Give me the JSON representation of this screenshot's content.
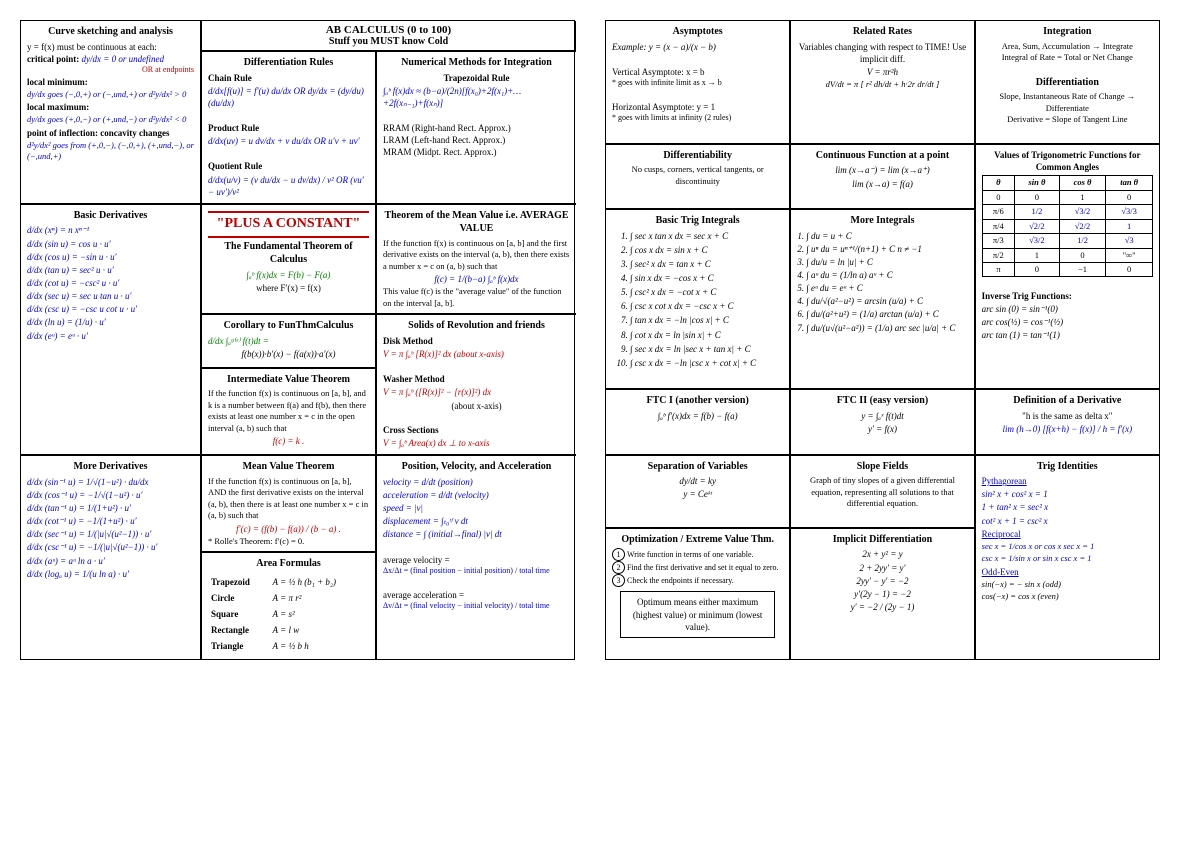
{
  "header": {
    "title": "AB CALCULUS (0 to 100)",
    "subtitle": "Stuff you MUST know Cold"
  },
  "left": {
    "curve": {
      "title": "Curve sketching and analysis",
      "l1": "y = f(x) must be continuous at each:",
      "crit": "critical point:",
      "crit_f": "dy/dx = 0 or undefined",
      "crit_or": "OR at endpoints",
      "lmin": "local minimum:",
      "lmin_f": "dy/dx goes (−,0,+) or (−,und,+) or d²y/dx² > 0",
      "lmax": "local maximum:",
      "lmax_f": "dy/dx goes (+,0,−) or (+,und,−) or d²y/dx² < 0",
      "poi": "point of inflection: concavity changes",
      "poi_f": "d²y/dx² goes from (+,0,−), (−,0,+), (+,und,−), or (−,und,+)"
    },
    "diff": {
      "title": "Differentiation Rules",
      "chain": "Chain Rule",
      "chain_f": "d/dx[f(u)] = f′(u) du/dx   OR   dy/dx = (dy/du)(du/dx)",
      "prod": "Product Rule",
      "prod_f": "d/dx(uv) = u dv/dx + v du/dx   OR   u′v + uv′",
      "quot": "Quotient Rule",
      "quot_f": "d/dx(u/v) = (v du/dx − u dv/dx) / v²   OR   (vu′ − uv′)/v²"
    },
    "num": {
      "title": "Numerical Methods for Integration",
      "trap": "Trapezoidal Rule",
      "trap_f": "∫ₐᵇ f(x)dx ≈ (b−a)/(2n)[f(x₀)+2f(x₁)+… +2f(xₙ₋₁)+f(xₙ)]",
      "rram": "RRAM  (Right-hand Rect. Approx.)",
      "lram": "LRAM  (Left-hand Rect. Approx.)",
      "mram": "MRAM  (Midpt. Rect. Approx.)"
    },
    "basic": {
      "title": "Basic Derivatives",
      "d1": "d/dx (xⁿ) = n xⁿ⁻¹",
      "d2": "d/dx (sin u) = cos u · u′",
      "d3": "d/dx (cos u) = −sin u · u′",
      "d4": "d/dx (tan u) = sec² u · u′",
      "d5": "d/dx (cot u) = −csc² u · u′",
      "d6": "d/dx (sec u) = sec u tan u · u′",
      "d7": "d/dx (csc u) = −csc u cot u · u′",
      "d8": "d/dx (ln u) = (1/u) · u′",
      "d9": "d/dx (eᵘ) = eᵘ · u′"
    },
    "constant": "\"PLUS A CONSTANT\"",
    "ftc": {
      "title": "The Fundamental Theorem of Calculus",
      "f1": "∫ₐᵇ f(x)dx = F(b) − F(a)",
      "f2": "where F′(x) = f(x)"
    },
    "cor": {
      "title": "Corollary to FunThmCalculus",
      "f1": "d/dx ∫ₐᵍ⁽ˣ⁾ f(t)dt =",
      "f2": "f(b(x))·b′(x) − f(a(x))·a′(x)"
    },
    "ivt": {
      "title": "Intermediate Value Theorem",
      "body": "If the function f(x) is continuous on [a, b], and k is a number between f(a) and f(b), then there exists at least one number x = c in the open interval (a, b) such that",
      "f": "f(c) = k ."
    },
    "mean": {
      "title": "Theorem of the Mean Value i.e. AVERAGE VALUE",
      "body": "If the function f(x) is continuous on [a, b] and the first derivative exists on the interval (a, b), then there exists a number x = c on (a, b) such that",
      "f": "f(c) = 1/(b−a) ∫ₐᵇ f(x)dx",
      "note": "This value f(c) is the \"average value\" of the function on the interval [a, b]."
    },
    "solids": {
      "title": "Solids of Revolution and friends",
      "disk": "Disk Method",
      "disk_f": "V = π ∫ₐᵇ [R(x)]² dx     (about x-axis)",
      "wash": "Washer Method",
      "wash_f": "V = π ∫ₐᵇ ([R(x)]² − [r(x)]²) dx",
      "wash_n": "(about x-axis)",
      "cross": "Cross Sections",
      "cross_f": "V = ∫ₐᵇ Area(x) dx      ⊥ to x-axis"
    },
    "more": {
      "title": "More Derivatives",
      "d1": "d/dx (sin⁻¹ u) = 1/√(1−u²) · du/dx",
      "d2": "d/dx (cos⁻¹ u) = −1/√(1−u²) · u′",
      "d3": "d/dx (tan⁻¹ u) = 1/(1+u²) · u′",
      "d4": "d/dx (cot⁻¹ u) = −1/(1+u²) · u′",
      "d5": "d/dx (sec⁻¹ u) = 1/(|u|√(u²−1)) · u′",
      "d6": "d/dx (csc⁻¹ u) = −1/(|u|√(u²−1)) · u′",
      "d7": "d/dx (aᵘ) = aᵘ ln a · u′",
      "d8": "d/dx (logₐ u) = 1/(u ln a) · u′"
    },
    "mvt": {
      "title": "Mean Value Theorem",
      "body": "If the function f(x) is continuous on [a, b], AND the first derivative exists on the interval (a, b), then there is at least one number x = c in (a, b) such that",
      "f": "f′(c) = (f(b) − f(a)) / (b − a) .",
      "rolle": "* Rolle's Theorem: f′(c) = 0."
    },
    "area": {
      "title": "Area Formulas",
      "trap": "Trapezoid",
      "trap_f": "A = ½ h (b₁ + b₂)",
      "circ": "Circle",
      "circ_f": "A = π r²",
      "sq": "Square",
      "sq_f": "A = s²",
      "rect": "Rectangle",
      "rect_f": "A = l w",
      "tri": "Triangle",
      "tri_f": "A = ½ b h"
    },
    "pva": {
      "title": "Position, Velocity, and Acceleration",
      "v": "velocity = d/dt (position)",
      "a": "acceleration = d/dt (velocity)",
      "s": "speed = |v|",
      "disp": "displacement = ∫ₜ₀ᵗᶠ v dt",
      "dist": "distance = ∫ (initial→final) |v| dt",
      "avgv_l": "average velocity =",
      "avgv": "Δx/Δt = (final position − initial position) / total time",
      "avga_l": "average acceleration =",
      "avga": "Δv/Δt = (final velocity − initial velocity) / total time"
    }
  },
  "right": {
    "asym": {
      "title": "Asymptotes",
      "ex": "Example:   y = (x − a)/(x − b)",
      "va": "Vertical Asymptote:  x = b",
      "va_n": "* goes with infinite limit as x → b",
      "ha": "Horizontal Asymptote:  y = 1",
      "ha_n": "* goes with limits at infinity (2 rules)"
    },
    "related": {
      "title": "Related Rates",
      "body": "Variables changing with respect to TIME!  Use implicit diff.",
      "f1": "V = πr²h",
      "f2": "dV/dt = π [ r² dh/dt + h·2r dr/dt ]"
    },
    "integ": {
      "title": "Integration",
      "l1": "Area, Sum, Accumulation → Integrate",
      "l2": "Integral of Rate = Total or Net Change",
      "dtitle": "Differentiation",
      "l3": "Slope, Instantaneous Rate of Change → Differentiate",
      "l4": "Derivative = Slope of Tangent Line"
    },
    "differ": {
      "title": "Differentiability",
      "body": "No cusps, corners, vertical tangents, or discontinuity"
    },
    "cont": {
      "title": "Continuous Function at a point",
      "f1": "lim (x→a⁻) = lim (x→a⁺)",
      "f2": "lim (x→a) = f(a)"
    },
    "trigvals": {
      "title": "Values of Trigonometric Functions for Common Angles",
      "headers": [
        "θ",
        "sin θ",
        "cos θ",
        "tan θ"
      ],
      "rows": [
        [
          "0",
          "0",
          "1",
          "0"
        ],
        [
          "π/6",
          "1/2",
          "√3/2",
          "√3/3"
        ],
        [
          "π/4",
          "√2/2",
          "√2/2",
          "1"
        ],
        [
          "π/3",
          "√3/2",
          "1/2",
          "√3"
        ],
        [
          "π/2",
          "1",
          "0",
          "\"∞\""
        ],
        [
          "π",
          "0",
          "−1",
          "0"
        ]
      ]
    },
    "inverse": {
      "title": "Inverse Trig Functions:",
      "l1": "arc sin (0) = sin⁻¹(0)",
      "l2": "arc cos(½) = cos⁻¹(½)",
      "l3": "arc tan (1) = tan⁻¹(1)"
    },
    "basictrig": {
      "title": "Basic Trig Integrals",
      "i1": "∫ sec x tan x dx = sec x + C",
      "i2": "∫ cos x dx = sin x + C",
      "i3": "∫ sec² x dx = tan x + C",
      "i4": "∫ sin x dx = −cos x + C",
      "i5": "∫ csc² x dx = −cot x + C",
      "i6": "∫ csc x cot x dx = −csc x + C",
      "i7": "∫ tan x dx = −ln |cos x| + C",
      "i8": "∫ cot x dx = ln |sin x| + C",
      "i9": "∫ sec x dx = ln |sec x + tan x| + C",
      "i10": "∫ csc x dx = −ln |csc x + cot x| + C"
    },
    "moreint": {
      "title": "More Integrals",
      "i1": "1. ∫ du = u + C",
      "i2": "2. ∫ uⁿ du = uⁿ⁺¹/(n+1) + C   n ≠ −1",
      "i3": "3. ∫ du/u = ln |u| + C",
      "i4": "4. ∫ aᵘ du = (1/ln a) aᵘ + C",
      "i5": "5. ∫ eᵘ du = eᵘ + C",
      "i6": "4. ∫ du/√(a²−u²) = arcsin (u/a) + C",
      "i7": "6. ∫ du/(a²+u²) = (1/a) arctan (u/a) + C",
      "i8": "7. ∫ du/(u√(u²−a²)) = (1/a) arc sec |u/a| + C"
    },
    "ftc1": {
      "title": "FTC I  (another version)",
      "f": "∫ₐᵇ f′(x)dx = f(b) − f(a)"
    },
    "ftc2": {
      "title": "FTC II  (easy version)",
      "f1": "y = ∫ₐˣ f(t)dt",
      "f2": "y′ = f(x)"
    },
    "defderiv": {
      "title": "Definition of a Derivative",
      "sub": "\"h is the same as delta x\"",
      "f": "lim (h→0) [f(x+h) − f(x)] / h = f′(x)"
    },
    "sep": {
      "title": "Separation of Variables",
      "f1": "dy/dt = ky",
      "f2": "y = Ceᵏᵗ"
    },
    "slope": {
      "title": "Slope Fields",
      "body": "Graph of tiny slopes of a given differential equation, representing all solutions to that differential equation."
    },
    "ident": {
      "title": "Trig Identities",
      "pyth": "Pythagorean",
      "p1": "sin² x + cos² x = 1",
      "p2": "1 + tan² x = sec² x",
      "p3": "cot² x + 1 = csc² x",
      "recip": "Reciprocal",
      "r1": "sec x = 1/cos x   or   cos x sec x = 1",
      "r2": "csc x = 1/sin x   or   sin x csc x = 1",
      "odd": "Odd-Even",
      "o1": "sin(−x) = − sin x     (odd)",
      "o2": "cos(−x) = cos x       (even)"
    },
    "opt": {
      "title": "Optimization / Extreme Value Thm.",
      "s1": "Write function in terms of one variable.",
      "s2": "Find the first derivative and set it equal to zero.",
      "s3": "Check the endpoints if necessary.",
      "box": "Optimum means either maximum (highest value) or minimum (lowest value)."
    },
    "impl": {
      "title": "Implicit Differentiation",
      "l1": "2x + y² = y",
      "l2": "2 + 2yy′ = y′",
      "l3": "2yy′ − y′ = −2",
      "l4": "y′(2y − 1) = −2",
      "l5": "y′ = −2 / (2y − 1)"
    }
  }
}
